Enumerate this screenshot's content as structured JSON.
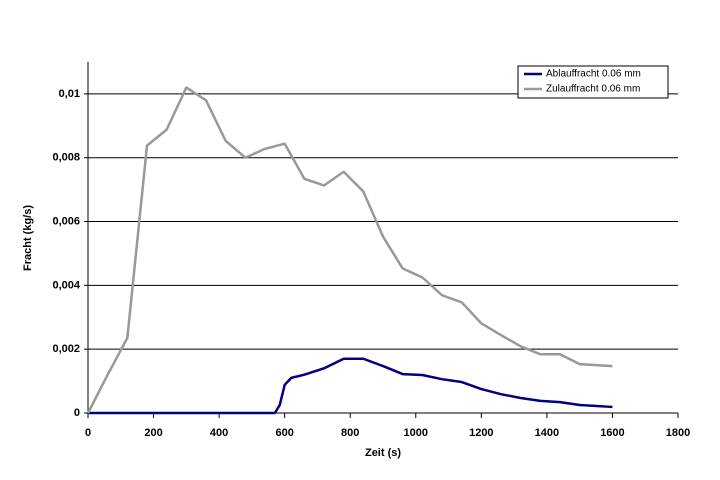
{
  "chart_data": {
    "type": "line",
    "xlabel": "Zeit (s)",
    "ylabel": "Fracht (kg/s)",
    "xlim": [
      0,
      1800
    ],
    "xticks": [
      0,
      200,
      400,
      600,
      800,
      1000,
      1200,
      1400,
      1600,
      1800
    ],
    "ylim": [
      0,
      0.011
    ],
    "yticks": [
      0,
      {
        "value": 0.002,
        "label": "0,002"
      },
      {
        "value": 0.004,
        "label": "0,004"
      },
      {
        "value": 0.006,
        "label": "0,006"
      },
      {
        "value": 0.008,
        "label": "0,008"
      },
      {
        "value": 0.01,
        "label": "0,01"
      }
    ],
    "grid": true,
    "legend": "top-right",
    "series": [
      {
        "name": "Ablauffracht 0.06 mm",
        "color": "#000080",
        "x": [
          0,
          570,
          585,
          600,
          620,
          660,
          720,
          780,
          840,
          900,
          960,
          1020,
          1080,
          1140,
          1200,
          1260,
          1320,
          1380,
          1440,
          1500,
          1600
        ],
        "values": [
          0,
          0,
          0.00025,
          0.00088,
          0.0011,
          0.0012,
          0.0014,
          0.0017,
          0.0017,
          0.00147,
          0.00122,
          0.00119,
          0.00106,
          0.00097,
          0.00075,
          0.00059,
          0.00047,
          0.00038,
          0.00034,
          0.00025,
          0.00019
        ]
      },
      {
        "name": "Zulauffracht 0.06 mm",
        "color": "#999999",
        "x": [
          0,
          60,
          120,
          180,
          240,
          300,
          360,
          420,
          480,
          540,
          600,
          660,
          720,
          780,
          840,
          900,
          960,
          1020,
          1080,
          1140,
          1200,
          1260,
          1320,
          1380,
          1440,
          1500,
          1600
        ],
        "values": [
          0,
          0.0012,
          0.00235,
          0.00838,
          0.00888,
          0.0102,
          0.0098,
          0.00853,
          0.008,
          0.00828,
          0.00844,
          0.00734,
          0.00713,
          0.00756,
          0.00694,
          0.00553,
          0.00453,
          0.00425,
          0.00369,
          0.00347,
          0.00281,
          0.00244,
          0.00209,
          0.00184,
          0.00184,
          0.00153,
          0.00147
        ]
      }
    ]
  }
}
